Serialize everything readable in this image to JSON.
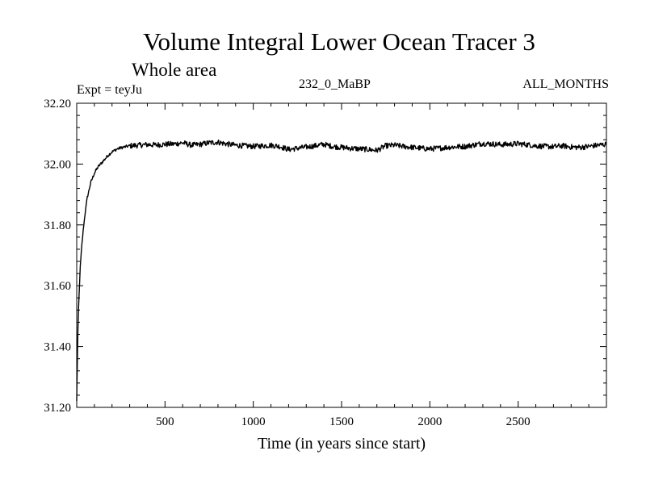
{
  "header": {
    "title": "Volume Integral Lower Ocean Tracer 3",
    "subtitle": "Whole area",
    "expt_label": "Expt = teyJu",
    "period_label": "232_0_MaBP",
    "months_label": "ALL_MONTHS"
  },
  "chart_data": {
    "type": "line",
    "title": "Volume Integral Lower Ocean Tracer 3",
    "subtitle": "Whole area",
    "xlabel": "Time (in years since start)",
    "ylabel": "",
    "xlim": [
      0,
      3000
    ],
    "ylim": [
      31.2,
      32.2
    ],
    "x_ticks": [
      500,
      1000,
      1500,
      2000,
      2500
    ],
    "x_tick_labels": [
      "500",
      "1000",
      "1500",
      "2000",
      "2500"
    ],
    "y_ticks": [
      31.2,
      31.4,
      31.6,
      31.8,
      32.0,
      32.2
    ],
    "y_tick_labels": [
      "31.20",
      "31.40",
      "31.60",
      "31.80",
      "32.00",
      "32.20"
    ],
    "grid": false,
    "series": [
      {
        "name": "Tracer 3",
        "color": "#000000",
        "x": [
          0,
          5,
          10,
          20,
          30,
          40,
          50,
          60,
          80,
          100,
          120,
          150,
          180,
          200,
          230,
          260,
          300,
          350,
          400,
          450,
          500,
          550,
          600,
          650,
          700,
          750,
          800,
          850,
          900,
          950,
          1000,
          1050,
          1100,
          1150,
          1200,
          1250,
          1300,
          1350,
          1400,
          1450,
          1500,
          1550,
          1600,
          1650,
          1700,
          1750,
          1800,
          1850,
          1900,
          1950,
          2000,
          2050,
          2100,
          2150,
          2200,
          2250,
          2300,
          2350,
          2400,
          2450,
          2500,
          2550,
          2600,
          2650,
          2700,
          2750,
          2800,
          2850,
          2900,
          2950,
          3000
        ],
        "y": [
          31.22,
          31.4,
          31.52,
          31.66,
          31.74,
          31.8,
          31.85,
          31.89,
          31.94,
          31.97,
          31.99,
          32.01,
          32.03,
          32.04,
          32.05,
          32.055,
          32.06,
          32.062,
          32.064,
          32.063,
          32.065,
          32.066,
          32.07,
          32.062,
          32.065,
          32.07,
          32.072,
          32.066,
          32.062,
          32.06,
          32.058,
          32.06,
          32.062,
          32.058,
          32.048,
          32.052,
          32.056,
          32.06,
          32.065,
          32.058,
          32.055,
          32.052,
          32.05,
          32.048,
          32.045,
          32.06,
          32.062,
          32.058,
          32.055,
          32.052,
          32.05,
          32.052,
          32.055,
          32.057,
          32.058,
          32.063,
          32.068,
          32.066,
          32.064,
          32.065,
          32.067,
          32.064,
          32.06,
          32.058,
          32.057,
          32.06,
          32.056,
          32.055,
          32.058,
          32.062,
          32.065
        ]
      }
    ]
  }
}
